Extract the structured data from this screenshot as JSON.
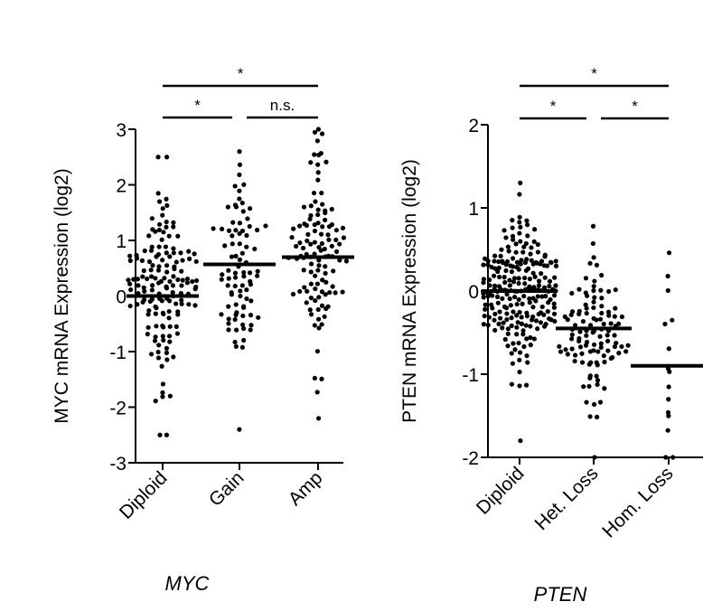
{
  "chart_data": [
    {
      "type": "scatter",
      "subtype": "dot-strip",
      "gene_label": "MYC",
      "ylabel": "MYC mRNA Expression  (log2)",
      "ylim": [
        -3,
        3
      ],
      "yticks": [
        "-3",
        "-2",
        "-1",
        "0",
        "1",
        "2",
        "3"
      ],
      "categories": [
        "Diploid",
        "Gain",
        "Amp"
      ],
      "medians": [
        0.0,
        0.57,
        0.7
      ],
      "groups": [
        {
          "name": "Diploid",
          "n": 150,
          "min": -2.5,
          "max": 2.5,
          "sd": 1.0
        },
        {
          "name": "Gain",
          "n": 85,
          "min": -2.4,
          "max": 2.6,
          "sd": 0.95
        },
        {
          "name": "Amp",
          "n": 115,
          "min": -2.2,
          "max": 3.0,
          "sd": 1.0
        }
      ],
      "comparisons": [
        {
          "from": "Diploid",
          "to": "Gain",
          "label": "*"
        },
        {
          "from": "Gain",
          "to": "Amp",
          "label": "n.s."
        },
        {
          "from": "Diploid",
          "to": "Amp",
          "label": "*"
        }
      ]
    },
    {
      "type": "scatter",
      "subtype": "dot-strip",
      "gene_label": "PTEN",
      "ylabel": "PTEN mRNA Expression  (log2)",
      "ylim": [
        -2,
        2
      ],
      "yticks": [
        "-2",
        "-1",
        "0",
        "1",
        "2"
      ],
      "categories": [
        "Diploid",
        "Het. Loss",
        "Hom. Loss"
      ],
      "medians": [
        0.0,
        -0.45,
        -0.9
      ],
      "groups": [
        {
          "name": "Diploid",
          "n": 230,
          "min": -1.8,
          "max": 1.3,
          "sd": 0.45
        },
        {
          "name": "Het. Loss",
          "n": 110,
          "min": -2.0,
          "max": 0.78,
          "sd": 0.5
        },
        {
          "name": "Hom. Loss",
          "n": 15,
          "min": -2.0,
          "max": 0.46,
          "sd": 0.7
        }
      ],
      "comparisons": [
        {
          "from": "Diploid",
          "to": "Het. Loss",
          "label": "*"
        },
        {
          "from": "Het. Loss",
          "to": "Hom. Loss",
          "label": "*"
        },
        {
          "from": "Diploid",
          "to": "Hom. Loss",
          "label": "*"
        }
      ]
    }
  ]
}
